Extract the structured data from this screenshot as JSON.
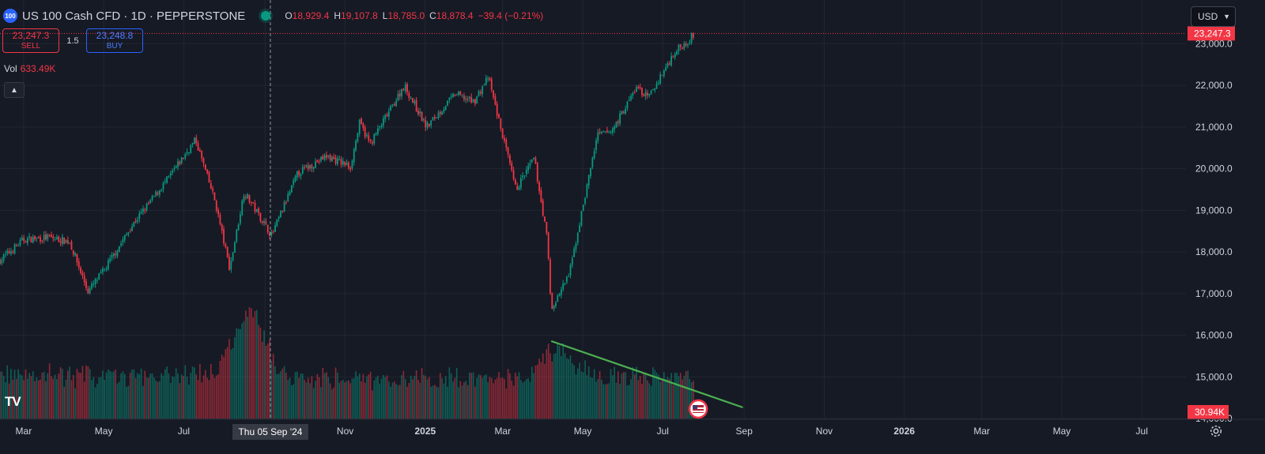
{
  "header": {
    "symbol_badge": "100",
    "title": "US 100 Cash CFD · 1D · PEPPERSTONE",
    "ohlc": [
      {
        "k": "O",
        "v": "18,929.4"
      },
      {
        "k": "H",
        "v": "19,107.8"
      },
      {
        "k": "L",
        "v": "18,785.0"
      },
      {
        "k": "C",
        "v": "18,878.4"
      },
      {
        "k": "",
        "v": "−39.4 (−0.21%)"
      }
    ]
  },
  "trade": {
    "sell_price": "23,247.3",
    "sell_label": "SELL",
    "spread": "1.5",
    "buy_price": "23,248.8",
    "buy_label": "BUY"
  },
  "volume_label": "Vol",
  "volume_value": "633.49K",
  "collapse_icon": "chevron-up-icon",
  "currency": "USD",
  "logo_text": "TV",
  "colors": {
    "bg": "#161a25",
    "up": "#089981",
    "down": "#f23645",
    "trend": "#4caf50",
    "grid": "#232632"
  },
  "chart_data": {
    "type": "candlestick",
    "price_axis": {
      "ticks": [
        "23,000.0",
        "22,000.0",
        "21,000.0",
        "20,000.0",
        "19,000.0",
        "18,000.0",
        "17,000.0",
        "16,000.0",
        "15,000.0",
        "14,000.0"
      ],
      "ylim": [
        13150,
        24050
      ]
    },
    "time_axis": {
      "labels": [
        "Mar",
        "May",
        "Jul",
        "Sep",
        "Nov",
        "2025",
        "Mar",
        "May",
        "Jul",
        "Sep",
        "Nov",
        "2026",
        "Mar",
        "May",
        "Jul"
      ]
    },
    "current_price_label": "23,247.3",
    "volume_label_right": "30.94K",
    "crosshair_label": "Thu 05 Sep '24",
    "price_path": [
      [
        "2024-02-12",
        17800
      ],
      [
        "2024-03-01",
        18300
      ],
      [
        "2024-03-20",
        18350
      ],
      [
        "2024-04-05",
        18250
      ],
      [
        "2024-04-19",
        17050
      ],
      [
        "2024-05-01",
        17550
      ],
      [
        "2024-05-24",
        18700
      ],
      [
        "2024-06-20",
        19800
      ],
      [
        "2024-07-10",
        20700
      ],
      [
        "2024-07-25",
        19200
      ],
      [
        "2024-08-05",
        17600
      ],
      [
        "2024-08-16",
        19450
      ],
      [
        "2024-09-06",
        18400
      ],
      [
        "2024-09-26",
        19900
      ],
      [
        "2024-10-18",
        20300
      ],
      [
        "2024-11-05",
        20050
      ],
      [
        "2024-11-12",
        21100
      ],
      [
        "2024-11-20",
        20600
      ],
      [
        "2024-12-05",
        21400
      ],
      [
        "2024-12-16",
        22000
      ],
      [
        "2025-01-02",
        21000
      ],
      [
        "2025-01-24",
        21800
      ],
      [
        "2025-02-07",
        21600
      ],
      [
        "2025-02-18",
        22200
      ],
      [
        "2025-03-11",
        19500
      ],
      [
        "2025-03-25",
        20250
      ],
      [
        "2025-04-04",
        18300
      ],
      [
        "2025-04-07",
        16600
      ],
      [
        "2025-04-21",
        17500
      ],
      [
        "2025-05-12",
        20800
      ],
      [
        "2025-05-23",
        20900
      ],
      [
        "2025-06-11",
        21950
      ],
      [
        "2025-06-20",
        21700
      ],
      [
        "2025-07-10",
        22800
      ],
      [
        "2025-07-21",
        23100
      ],
      [
        "2025-07-25",
        23247.3
      ]
    ],
    "volume_note": "relative daily volume bars",
    "trendline": {
      "from": [
        "2025-04-07",
        "high volume"
      ],
      "to": [
        "2025-08-31",
        "low volume"
      ]
    },
    "event_marker": "us-flag-icon"
  }
}
